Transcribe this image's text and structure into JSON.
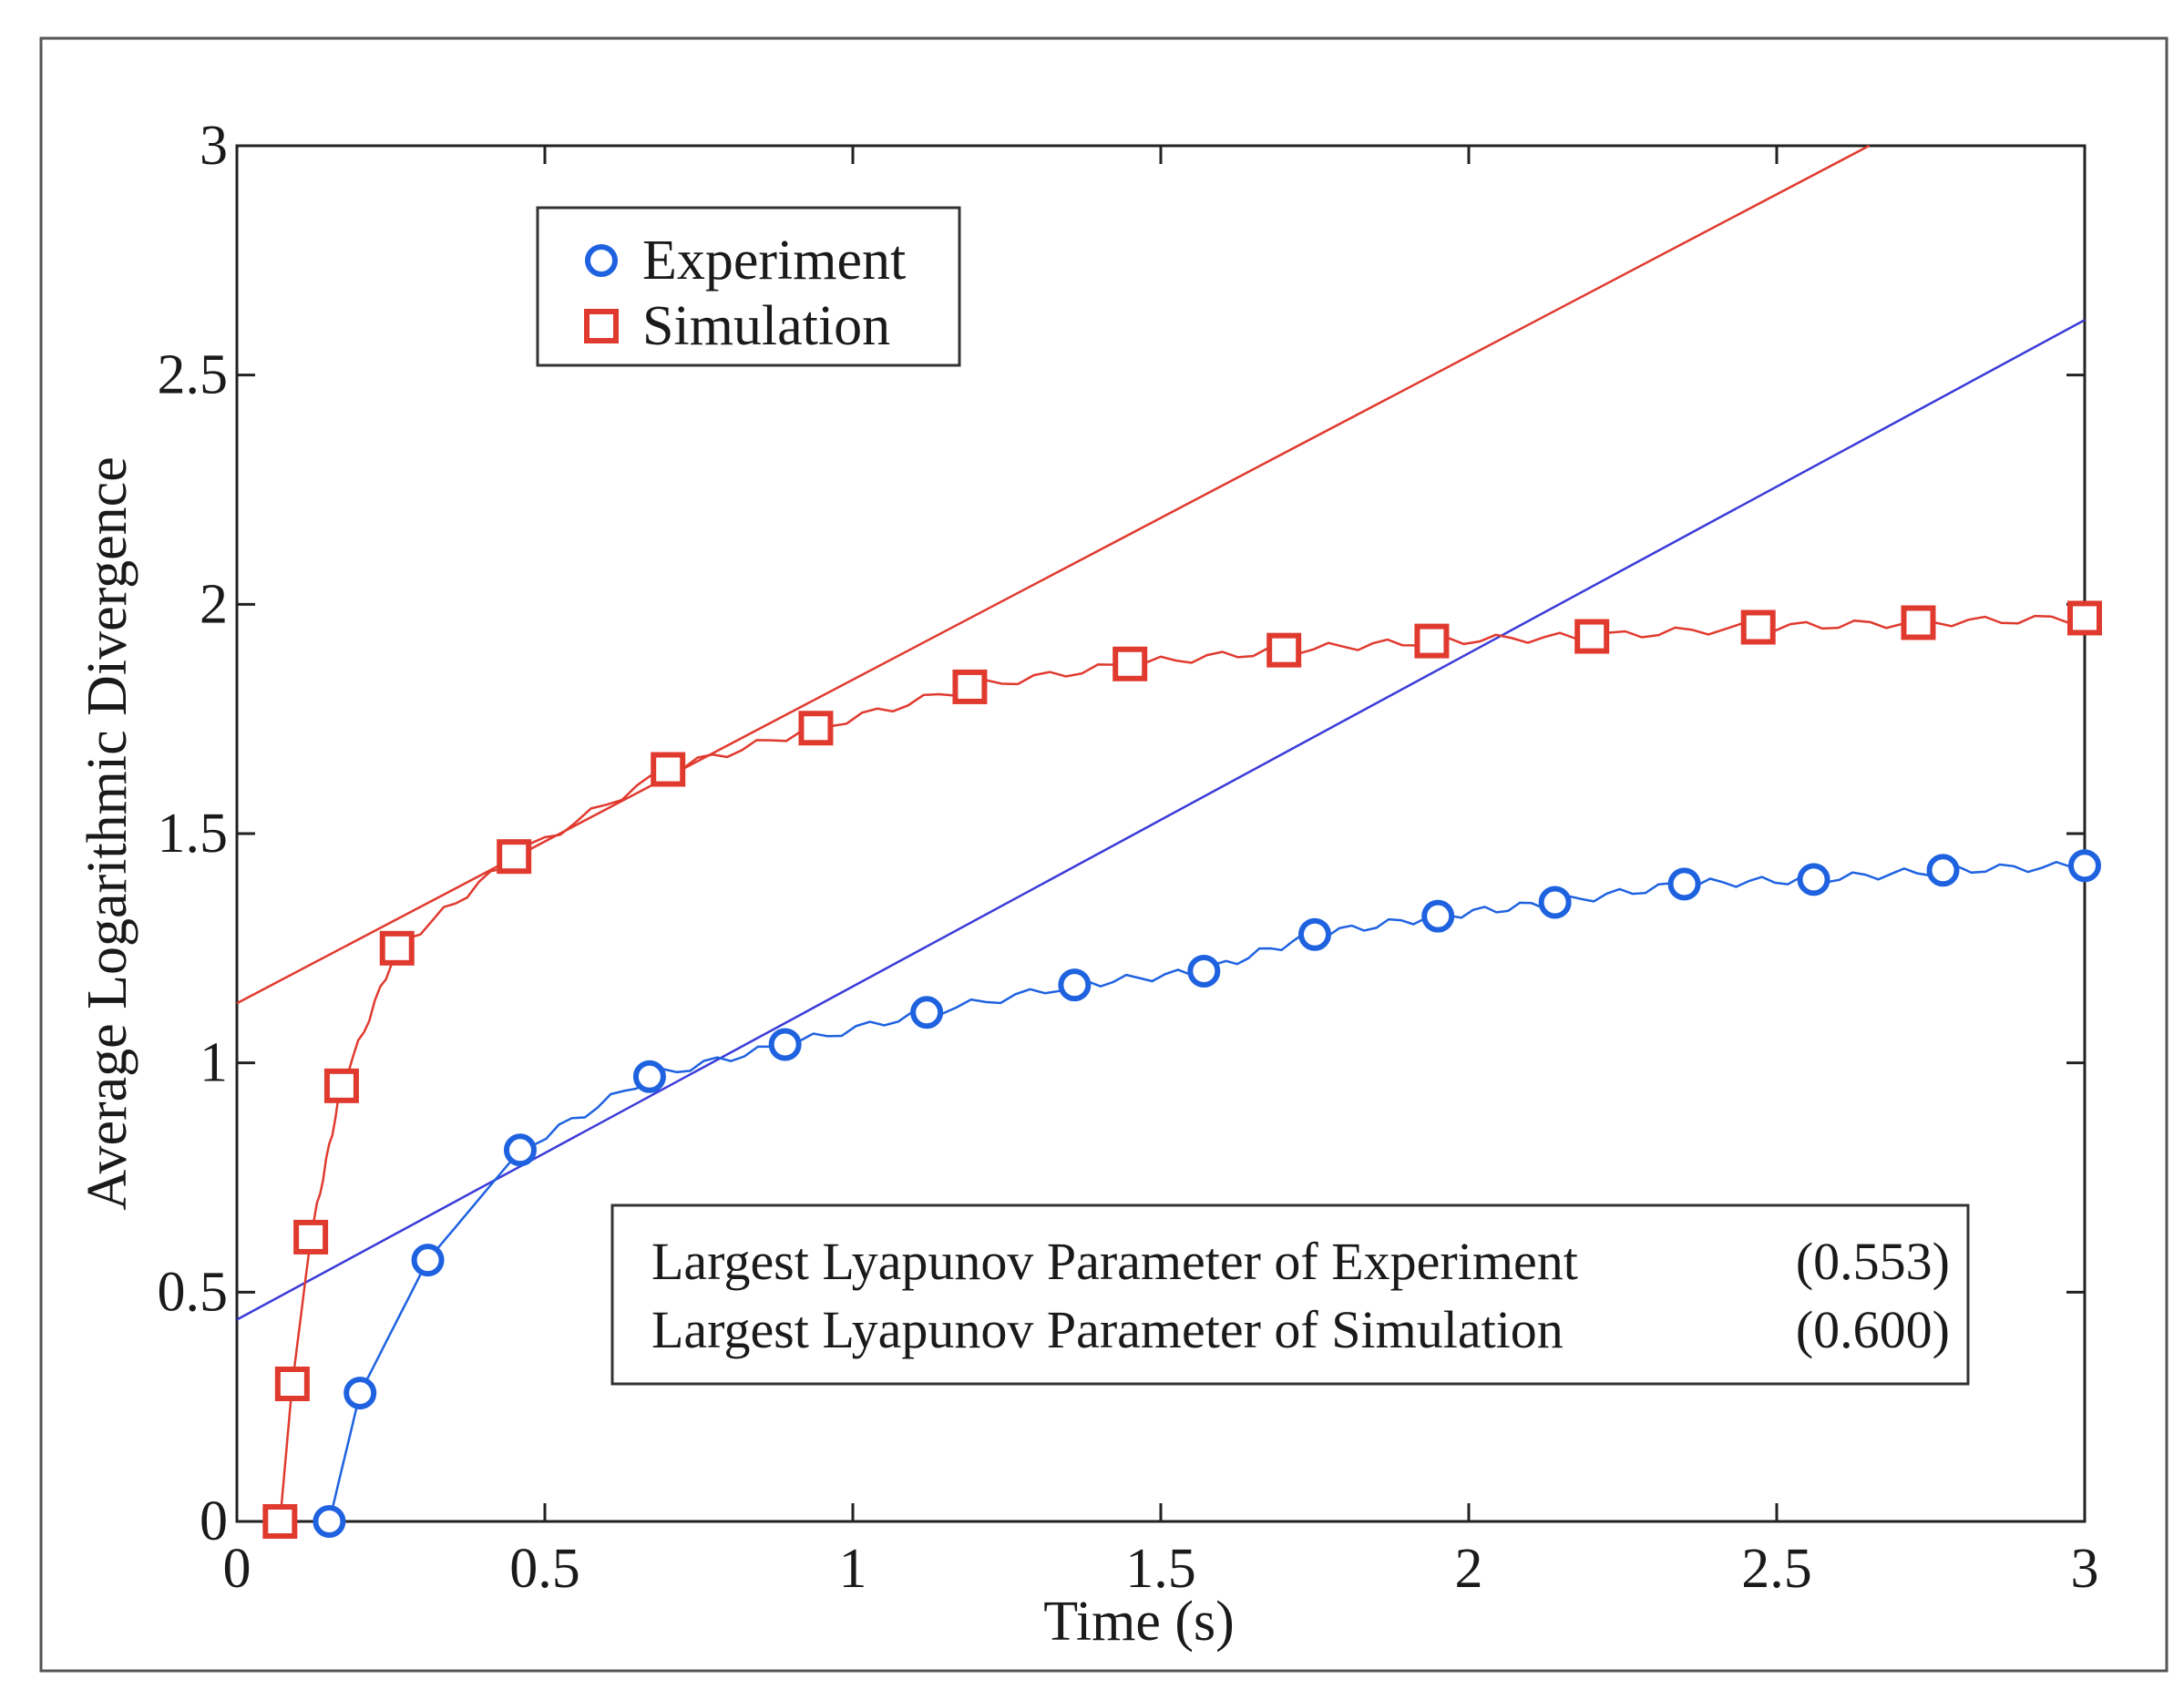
{
  "chart_data": {
    "type": "line",
    "title": "",
    "xlabel": "Time (s)",
    "ylabel": "Average Logarithmic Divergence",
    "xlim": [
      0,
      3
    ],
    "ylim": [
      0,
      3
    ],
    "grid": false,
    "legend_position": "top-left",
    "x_ticks": [
      0,
      0.5,
      1,
      1.5,
      2,
      2.5,
      3
    ],
    "x_tick_labels": [
      "0",
      "0.5",
      "1",
      "1.5",
      "2",
      "2.5",
      "3"
    ],
    "y_ticks": [
      0,
      0.5,
      1,
      1.5,
      2,
      2.5,
      3
    ],
    "y_tick_labels": [
      "0",
      "0.5",
      "1",
      "1.5",
      "2",
      "2.5",
      "3"
    ],
    "series": [
      {
        "name": "Experiment",
        "color": "#1f62e0",
        "marker": "circle",
        "x": [
          0.15,
          0.2,
          0.31,
          0.46,
          0.67,
          0.89,
          1.12,
          1.36,
          1.57,
          1.75,
          1.95,
          2.14,
          2.35,
          2.56,
          2.77,
          3.0
        ],
        "values": [
          0.0,
          0.28,
          0.57,
          0.81,
          0.97,
          1.04,
          1.11,
          1.17,
          1.2,
          1.28,
          1.32,
          1.35,
          1.39,
          1.4,
          1.42,
          1.43
        ]
      },
      {
        "name": "Simulation",
        "color": "#e03a2f",
        "marker": "square",
        "x": [
          0.07,
          0.09,
          0.12,
          0.17,
          0.26,
          0.45,
          0.7,
          0.94,
          1.19,
          1.45,
          1.7,
          1.94,
          2.2,
          2.47,
          2.73,
          3.0
        ],
        "values": [
          0.0,
          0.3,
          0.62,
          0.95,
          1.25,
          1.45,
          1.64,
          1.73,
          1.82,
          1.87,
          1.9,
          1.92,
          1.93,
          1.95,
          1.96,
          1.97
        ]
      }
    ],
    "fit_lines": [
      {
        "name": "Experiment fit",
        "color": "#3b3bd9",
        "x": [
          0,
          3
        ],
        "values": [
          0.44,
          2.62
        ]
      },
      {
        "name": "Simulation fit",
        "color": "#e03a2f",
        "x": [
          0,
          2.65
        ],
        "values": [
          1.13,
          3.0
        ]
      }
    ],
    "annotation_lines": [
      {
        "label": "Largest Lyapunov Parameter of Experiment",
        "value": "(0.553)"
      },
      {
        "label": "Largest Lyapunov Parameter of Simulation",
        "value": "(0.600)"
      }
    ]
  }
}
